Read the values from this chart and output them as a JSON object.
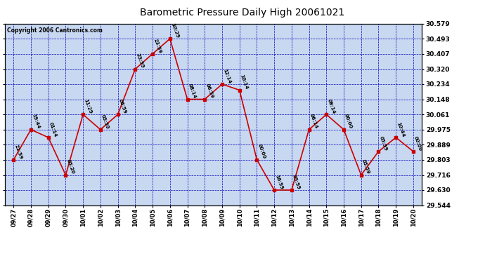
{
  "title": "Barometric Pressure Daily High 20061021",
  "copyright": "Copyright 2006 Cantronics.com",
  "x_labels": [
    "09/27",
    "09/28",
    "09/29",
    "09/30",
    "10/01",
    "10/02",
    "10/03",
    "10/04",
    "10/05",
    "10/06",
    "10/07",
    "10/08",
    "10/09",
    "10/10",
    "10/11",
    "10/12",
    "10/13",
    "10/14",
    "10/15",
    "10/16",
    "10/17",
    "10/18",
    "10/19",
    "10/20"
  ],
  "y_values": [
    29.803,
    29.975,
    29.93,
    29.716,
    30.061,
    29.975,
    30.061,
    30.32,
    30.407,
    30.493,
    30.148,
    30.148,
    30.234,
    30.2,
    29.803,
    29.63,
    29.63,
    29.975,
    30.061,
    29.975,
    29.716,
    29.85,
    29.93,
    29.85
  ],
  "time_labels": [
    "21:59",
    "19:44",
    "01:14",
    "05:20",
    "11:29",
    "05:59",
    "06:59",
    "23:59",
    "23:59",
    "10:29",
    "08:14",
    "06:59",
    "12:14",
    "10:14",
    "00:00",
    "16:59",
    "05:59",
    "06:14",
    "08:14",
    "00:00",
    "05:59",
    "05:59",
    "10:44",
    "00:00"
  ],
  "y_ticks": [
    29.544,
    29.63,
    29.716,
    29.803,
    29.889,
    29.975,
    30.061,
    30.148,
    30.234,
    30.32,
    30.407,
    30.493,
    30.579
  ],
  "y_min": 29.544,
  "y_max": 30.579,
  "line_color": "#cc0000",
  "marker_color": "#cc0000",
  "bg_color": "#c8d8f0",
  "outer_bg": "#ffffff",
  "grid_color": "#0000bb",
  "title_color": "#000000",
  "axis_label_color": "#000000",
  "annotation_color": "#000000",
  "border_color": "#000000"
}
